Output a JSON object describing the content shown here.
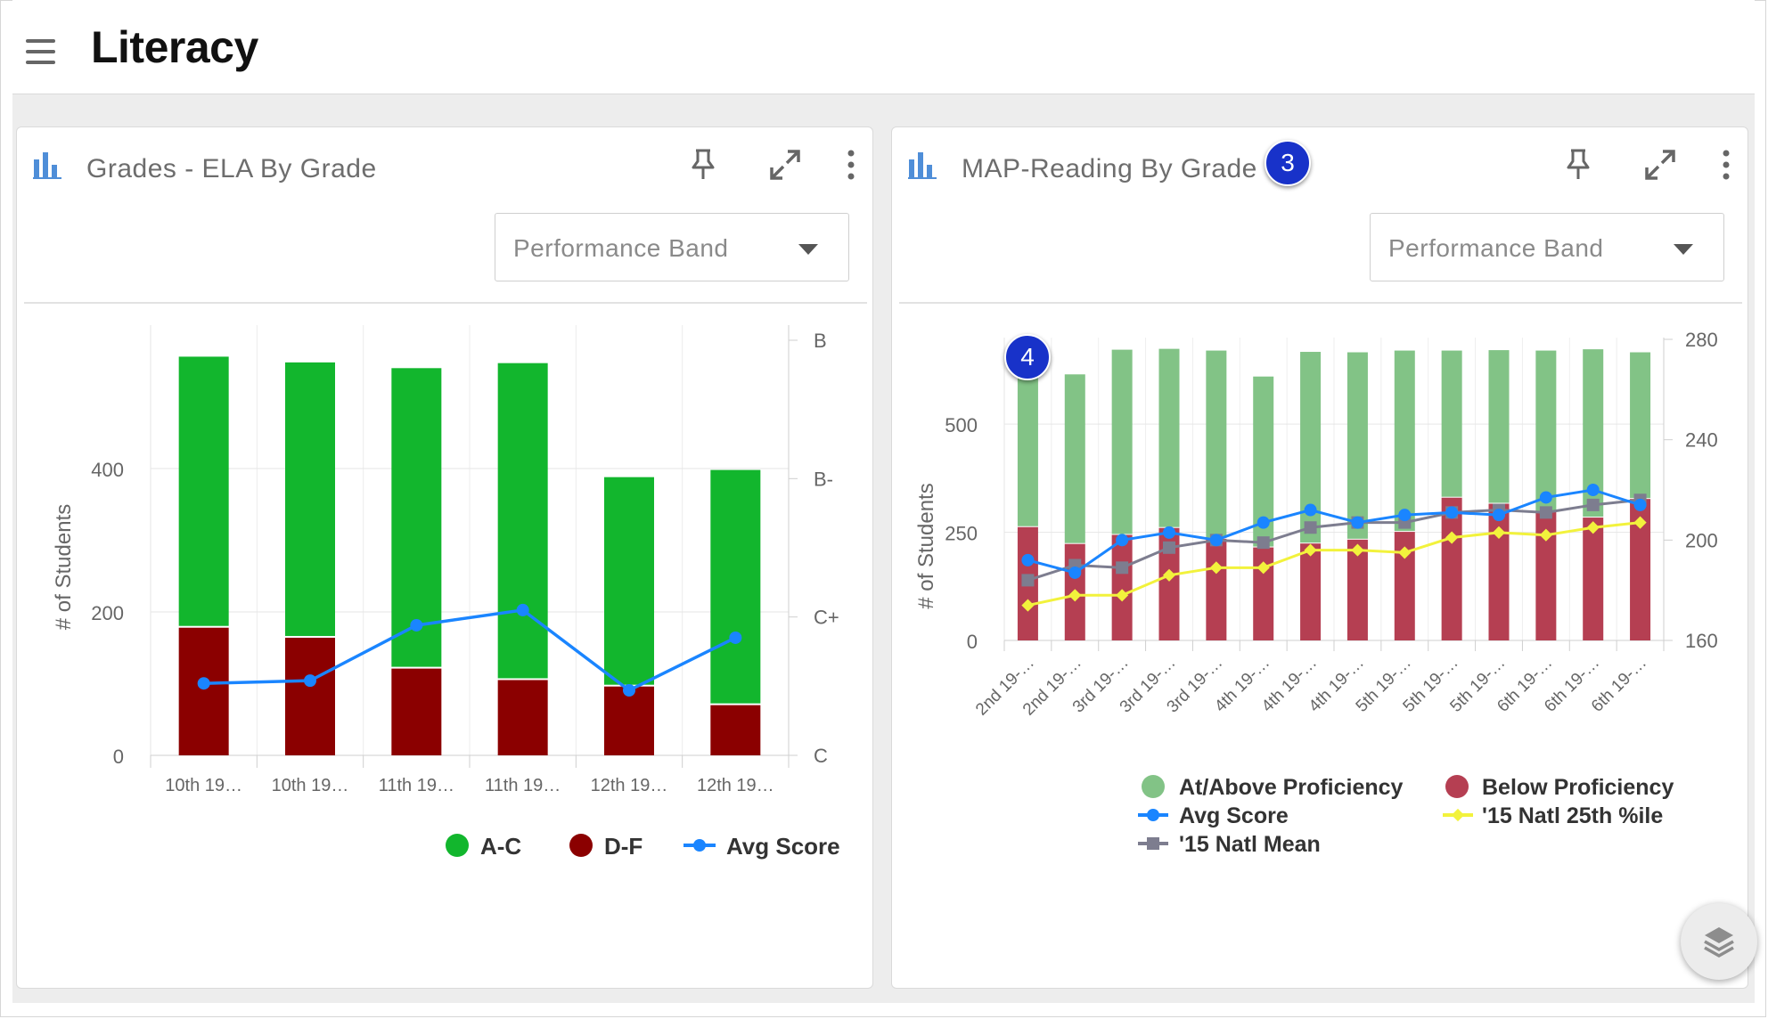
{
  "header": {
    "title": "Literacy",
    "menu_icon": "hamburger-menu-icon"
  },
  "colors": {
    "left_pass": "#12b62d",
    "left_fail": "#8b0000",
    "avg": "#1a85ff",
    "right_pass": "#82c386",
    "right_fail": "#b53f52",
    "natl_mean": "#7d7d8f",
    "natl_25": "#f2f23c",
    "badge": "#1832c9",
    "icon_blue": "#4f8ed8"
  },
  "cards": [
    {
      "title": "Grades - ELA By Grade",
      "dropdown": {
        "selected": "Performance Band"
      },
      "icons": [
        "bar-chart-icon",
        "pin-icon",
        "expand-icon",
        "more-vertical-icon"
      ]
    },
    {
      "title": "MAP-Reading By Grade",
      "badge": "3",
      "dropdown": {
        "selected": "Performance Band"
      },
      "icons": [
        "bar-chart-icon",
        "pin-icon",
        "expand-icon",
        "more-vertical-icon"
      ],
      "plot_badge": "4"
    }
  ],
  "chart_data": [
    {
      "type": "bar",
      "stacked": true,
      "categories": [
        "10th 19…",
        "10th 19…",
        "11th 19…",
        "11th 19…",
        "12th 19…",
        "12th 19…"
      ],
      "series": [
        {
          "name": "D-F",
          "type": "bar",
          "values": [
            178,
            164,
            121,
            105,
            96,
            70
          ]
        },
        {
          "name": "A-C",
          "type": "bar",
          "values": [
            378,
            384,
            419,
            442,
            292,
            328
          ]
        },
        {
          "name": "Avg Score",
          "type": "line",
          "axis": "right",
          "values": [
            0.52,
            0.54,
            0.94,
            1.05,
            0.47,
            0.85
          ]
        }
      ],
      "ylabel": "# of Students",
      "ylim": [
        0,
        600
      ],
      "yticks": [
        "0",
        "200",
        "400"
      ],
      "y2_ticks": [
        "C",
        "C+",
        "B-",
        "B"
      ],
      "legend": [
        "A-C",
        "D-F",
        "Avg Score"
      ],
      "legend_position": "bottom",
      "grid": true
    },
    {
      "type": "bar",
      "stacked": true,
      "categories": [
        "2nd 19-…",
        "2nd 19-…",
        "3rd 19-…",
        "3rd 19-…",
        "3rd 19-…",
        "4th 19-…",
        "4th 19-…",
        "4th 19-…",
        "5th 19-…",
        "5th 19-…",
        "5th 19-…",
        "6th 19-…",
        "6th 19-…",
        "6th 19-…"
      ],
      "series": [
        {
          "name": "Below Proficiency",
          "type": "bar",
          "values": [
            262,
            223,
            244,
            260,
            235,
            215,
            224,
            233,
            251,
            330,
            316,
            297,
            284,
            327
          ]
        },
        {
          "name": "At/Above Proficiency",
          "type": "bar",
          "values": [
            350,
            392,
            428,
            414,
            435,
            395,
            443,
            433,
            419,
            340,
            355,
            373,
            389,
            339
          ]
        },
        {
          "name": "Avg Score",
          "type": "line",
          "axis": "right",
          "values": [
            192,
            187,
            200,
            203,
            200,
            207,
            212,
            207,
            210,
            211,
            210,
            217,
            220,
            214
          ]
        },
        {
          "name": "'15 Natl Mean",
          "type": "line",
          "axis": "right",
          "values": [
            184,
            190,
            189,
            197,
            200,
            199,
            205,
            207,
            207,
            211,
            212,
            211,
            214,
            216
          ]
        },
        {
          "name": "'15 Natl 25th %ile",
          "type": "line",
          "axis": "right",
          "values": [
            174,
            178,
            178,
            186,
            189,
            189,
            196,
            196,
            195,
            201,
            203,
            202,
            205,
            207
          ]
        }
      ],
      "ylabel": "# of Students",
      "ylim": [
        0,
        700
      ],
      "yticks": [
        "0",
        "250",
        "500"
      ],
      "y2lim": [
        160,
        280
      ],
      "y2_ticks": [
        "160",
        "200",
        "240",
        "280"
      ],
      "legend": [
        "At/Above Proficiency",
        "Below Proficiency",
        "Avg Score",
        "'15 Natl 25th %ile",
        "'15 Natl Mean"
      ],
      "legend_position": "bottom",
      "grid": true
    }
  ]
}
